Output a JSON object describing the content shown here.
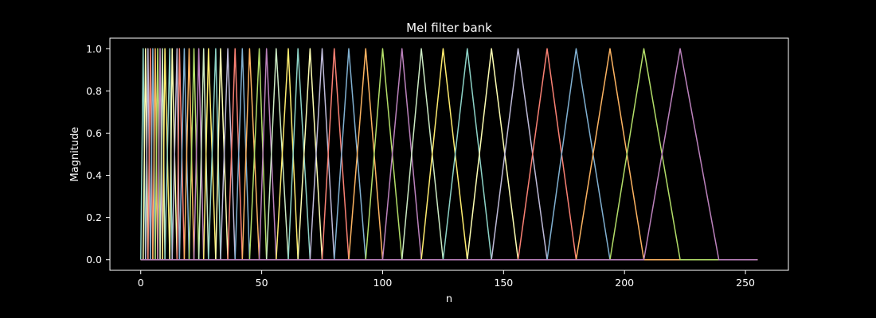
{
  "chart_data": {
    "type": "line",
    "title": "Mel filter bank",
    "xlabel": "n",
    "ylabel": "Magnitude",
    "xlim": [
      -12.75,
      267.75
    ],
    "ylim": [
      -0.05,
      1.05
    ],
    "x_ticks": [
      0,
      50,
      100,
      150,
      200,
      250
    ],
    "y_ticks": [
      0.0,
      0.2,
      0.4,
      0.6,
      0.8,
      1.0
    ],
    "y_tick_labels": [
      "0.0",
      "0.2",
      "0.4",
      "0.6",
      "0.8",
      "1.0"
    ],
    "x_domain": [
      0,
      255
    ],
    "filter_points": [
      0,
      1,
      2,
      3,
      4,
      5,
      6,
      7,
      8,
      9,
      10,
      12,
      13,
      15,
      16,
      18,
      20,
      22,
      24,
      26,
      28,
      31,
      33,
      36,
      39,
      42,
      45,
      49,
      52,
      56,
      61,
      65,
      70,
      75,
      80,
      86,
      93,
      100,
      108,
      116,
      125,
      135,
      145,
      156,
      168,
      180,
      194,
      208,
      223,
      239
    ],
    "palette": [
      "#8dd3c7",
      "#feffb3",
      "#bfbbd9",
      "#fa8174",
      "#81b1d2",
      "#fdb462",
      "#b3de69",
      "#bc82bd",
      "#ccebc4",
      "#ffed6f"
    ],
    "grid": false,
    "legend": "none"
  }
}
